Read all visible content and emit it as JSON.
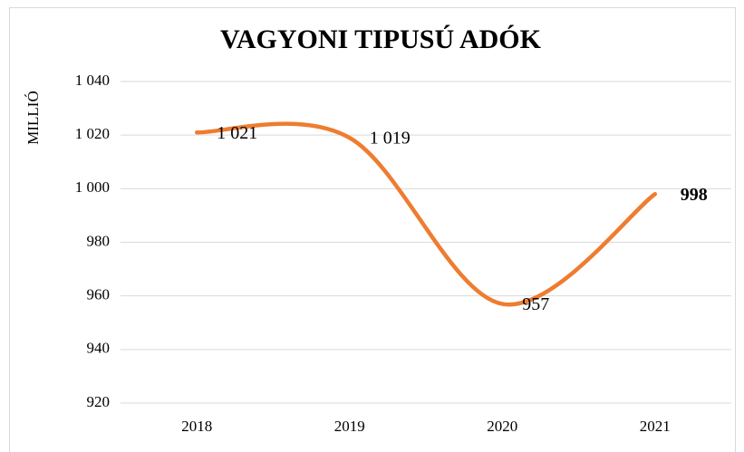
{
  "chart_data": {
    "type": "line",
    "title": "VAGYONI TIPUSÚ ADÓK",
    "y_label": "MILLIÓ",
    "categories": [
      "2018",
      "2019",
      "2020",
      "2021"
    ],
    "series": [
      {
        "name": "Vagyoni tipusú adók",
        "color": "#ed7d31",
        "values": [
          1021,
          1019,
          957,
          998
        ],
        "value_labels": [
          "1 021",
          "1 019",
          "957",
          "998"
        ]
      }
    ],
    "ylim": [
      920,
      1040
    ],
    "yticks": [
      920,
      940,
      960,
      980,
      {
        "value": 1000,
        "label": "1 000"
      },
      {
        "value": 1020,
        "label": "1 020"
      },
      {
        "value": 1040,
        "label": "1 040"
      }
    ],
    "grid": true,
    "smooth": true
  }
}
